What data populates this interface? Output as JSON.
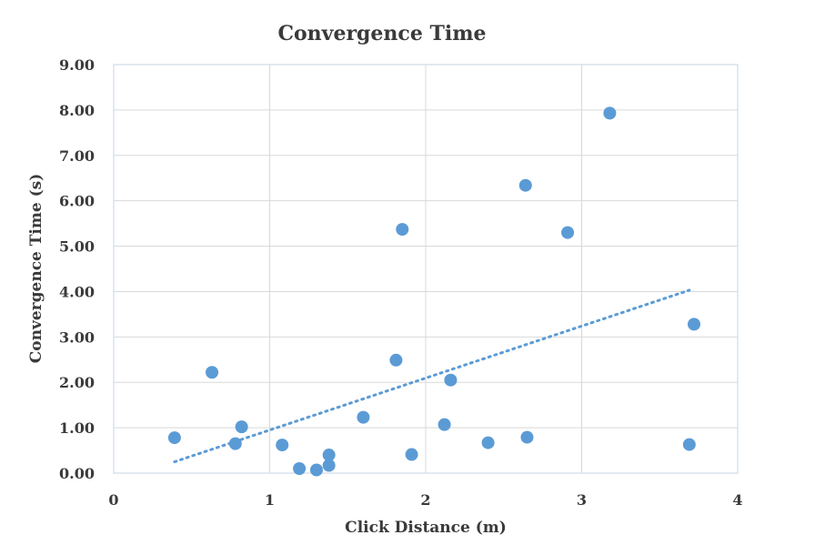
{
  "chart_data": {
    "type": "scatter",
    "title": "Convergence Time",
    "xlabel": "Click Distance (m)",
    "ylabel": "Convergence Time (s)",
    "xlim": [
      0,
      4
    ],
    "ylim": [
      0,
      9
    ],
    "x_ticks": [
      "0",
      "1",
      "2",
      "3",
      "4"
    ],
    "y_ticks": [
      "0.00",
      "1.00",
      "2.00",
      "3.00",
      "4.00",
      "5.00",
      "6.00",
      "7.00",
      "8.00",
      "9.00"
    ],
    "grid": true,
    "point_color": "#5b9bd5",
    "points": [
      {
        "x": 0.39,
        "y": 0.78
      },
      {
        "x": 0.63,
        "y": 2.22
      },
      {
        "x": 0.78,
        "y": 0.65
      },
      {
        "x": 0.82,
        "y": 1.02
      },
      {
        "x": 1.08,
        "y": 0.62
      },
      {
        "x": 1.19,
        "y": 0.1
      },
      {
        "x": 1.3,
        "y": 0.07
      },
      {
        "x": 1.38,
        "y": 0.17
      },
      {
        "x": 1.38,
        "y": 0.4
      },
      {
        "x": 1.6,
        "y": 1.23
      },
      {
        "x": 1.81,
        "y": 2.49
      },
      {
        "x": 1.85,
        "y": 5.37
      },
      {
        "x": 1.91,
        "y": 0.41
      },
      {
        "x": 2.12,
        "y": 1.07
      },
      {
        "x": 2.16,
        "y": 2.05
      },
      {
        "x": 2.4,
        "y": 0.67
      },
      {
        "x": 2.64,
        "y": 6.34
      },
      {
        "x": 2.65,
        "y": 0.79
      },
      {
        "x": 2.91,
        "y": 5.3
      },
      {
        "x": 3.18,
        "y": 7.93
      },
      {
        "x": 3.69,
        "y": 0.63
      },
      {
        "x": 3.72,
        "y": 3.28
      }
    ],
    "trendline": {
      "style": "dotted",
      "x": [
        0.39,
        3.69
      ],
      "y": [
        0.25,
        4.03
      ]
    }
  }
}
